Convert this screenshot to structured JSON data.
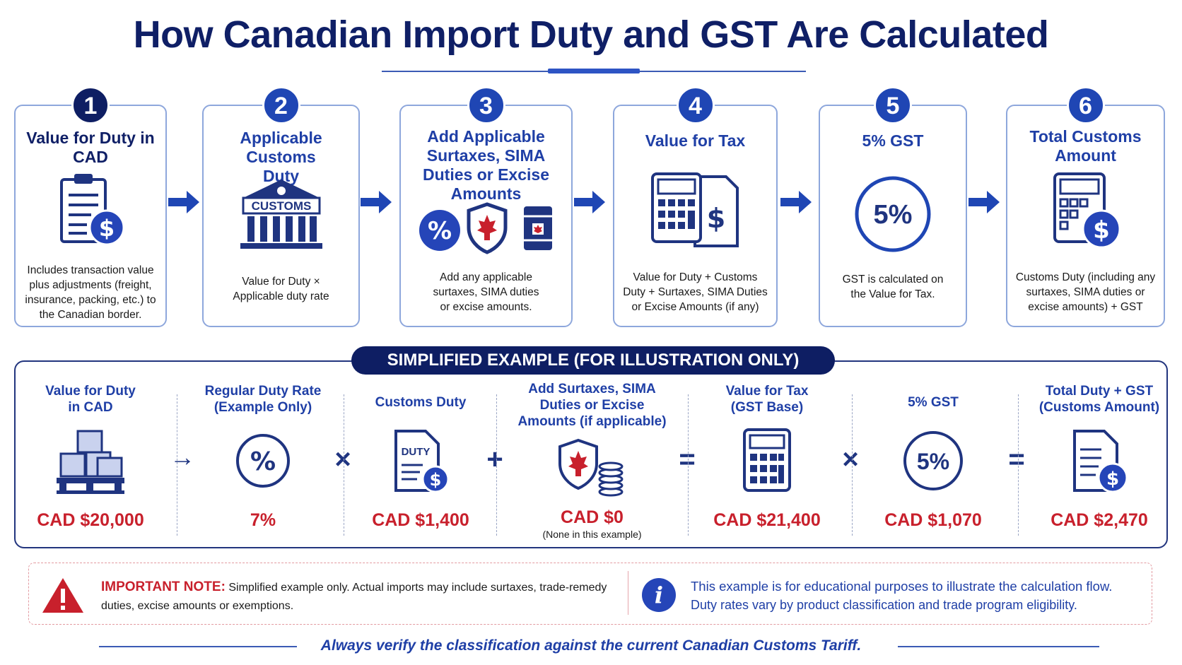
{
  "title": "How Canadian Import Duty and GST Are Calculated",
  "colors": {
    "navy": "#0f1f66",
    "blue": "#1f3fa6",
    "accent": "#2545b8",
    "red": "#c8202c"
  },
  "steps": [
    {
      "number": "1",
      "title": "Value for Duty in CAD",
      "description": "Includes transaction value plus adjustments (freight, insurance, packing, etc.) to the Canadian border.",
      "icon": "clipboard-dollar-icon"
    },
    {
      "number": "2",
      "title": "Applicable Customs Duty",
      "description": "Value for Duty × Applicable duty rate",
      "icon": "customs-building-icon",
      "icon_label": "CUSTOMS"
    },
    {
      "number": "3",
      "title": "Add Applicable Surtaxes, SIMA Duties or Excise Amounts",
      "description": "Add any applicable surtaxes, SIMA duties or excise amounts.",
      "icon": "percent-shield-barrel-icons"
    },
    {
      "number": "4",
      "title": "Value for Tax",
      "description": "Value for Duty + Customs Duty + Surtaxes, SIMA Duties or Excise Amounts (if any)",
      "icon": "calculator-document-icon"
    },
    {
      "number": "5",
      "title": "5% GST",
      "description": "GST is calculated on the Value for Tax.",
      "icon": "percent-circle-icon",
      "icon_label": "5%"
    },
    {
      "number": "6",
      "title": "Total Customs Amount",
      "description": "Customs Duty (including any surtaxes, SIMA duties or excise amounts) + GST",
      "icon": "calculator-dollar-icon"
    }
  ],
  "example": {
    "heading": "SIMPLIFIED EXAMPLE (FOR ILLUSTRATION ONLY)",
    "columns": [
      {
        "title": "Value for Duty in CAD",
        "value": "CAD $20,000",
        "icon": "boxes-pallet-icon"
      },
      {
        "title": "Regular Duty Rate (Example Only)",
        "value": "7%",
        "icon": "percent-circle-icon"
      },
      {
        "title": "Customs Duty",
        "value": "CAD $1,400",
        "icon": "duty-document-icon",
        "icon_label": "DUTY"
      },
      {
        "title": "Add Surtaxes, SIMA Duties or Excise Amounts (if applicable)",
        "value": "CAD $0",
        "note": "(None in this example)",
        "icon": "shield-coins-icon"
      },
      {
        "title": "Value for Tax (GST Base)",
        "value": "CAD $21,400",
        "icon": "calculator-icon"
      },
      {
        "title": "5% GST",
        "value": "CAD $1,070",
        "icon": "percent-circle-icon",
        "icon_label": "5%"
      },
      {
        "title": "Total Duty + GST (Customs Amount)",
        "value": "CAD $2,470",
        "icon": "document-dollar-icon"
      }
    ],
    "operators": [
      "→",
      "×",
      "+",
      "=",
      "×",
      "="
    ]
  },
  "note": {
    "label": "IMPORTANT NOTE:",
    "text": "Simplified example only. Actual imports may include surtaxes, trade-remedy duties, excise amounts or exemptions.",
    "info_icon": "i",
    "info_line1": "This example is for educational purposes to illustrate the calculation flow.",
    "info_line2": "Duty rates vary by product classification and trade program eligibility."
  },
  "footer": "Always verify the classification against the current Canadian Customs Tariff."
}
